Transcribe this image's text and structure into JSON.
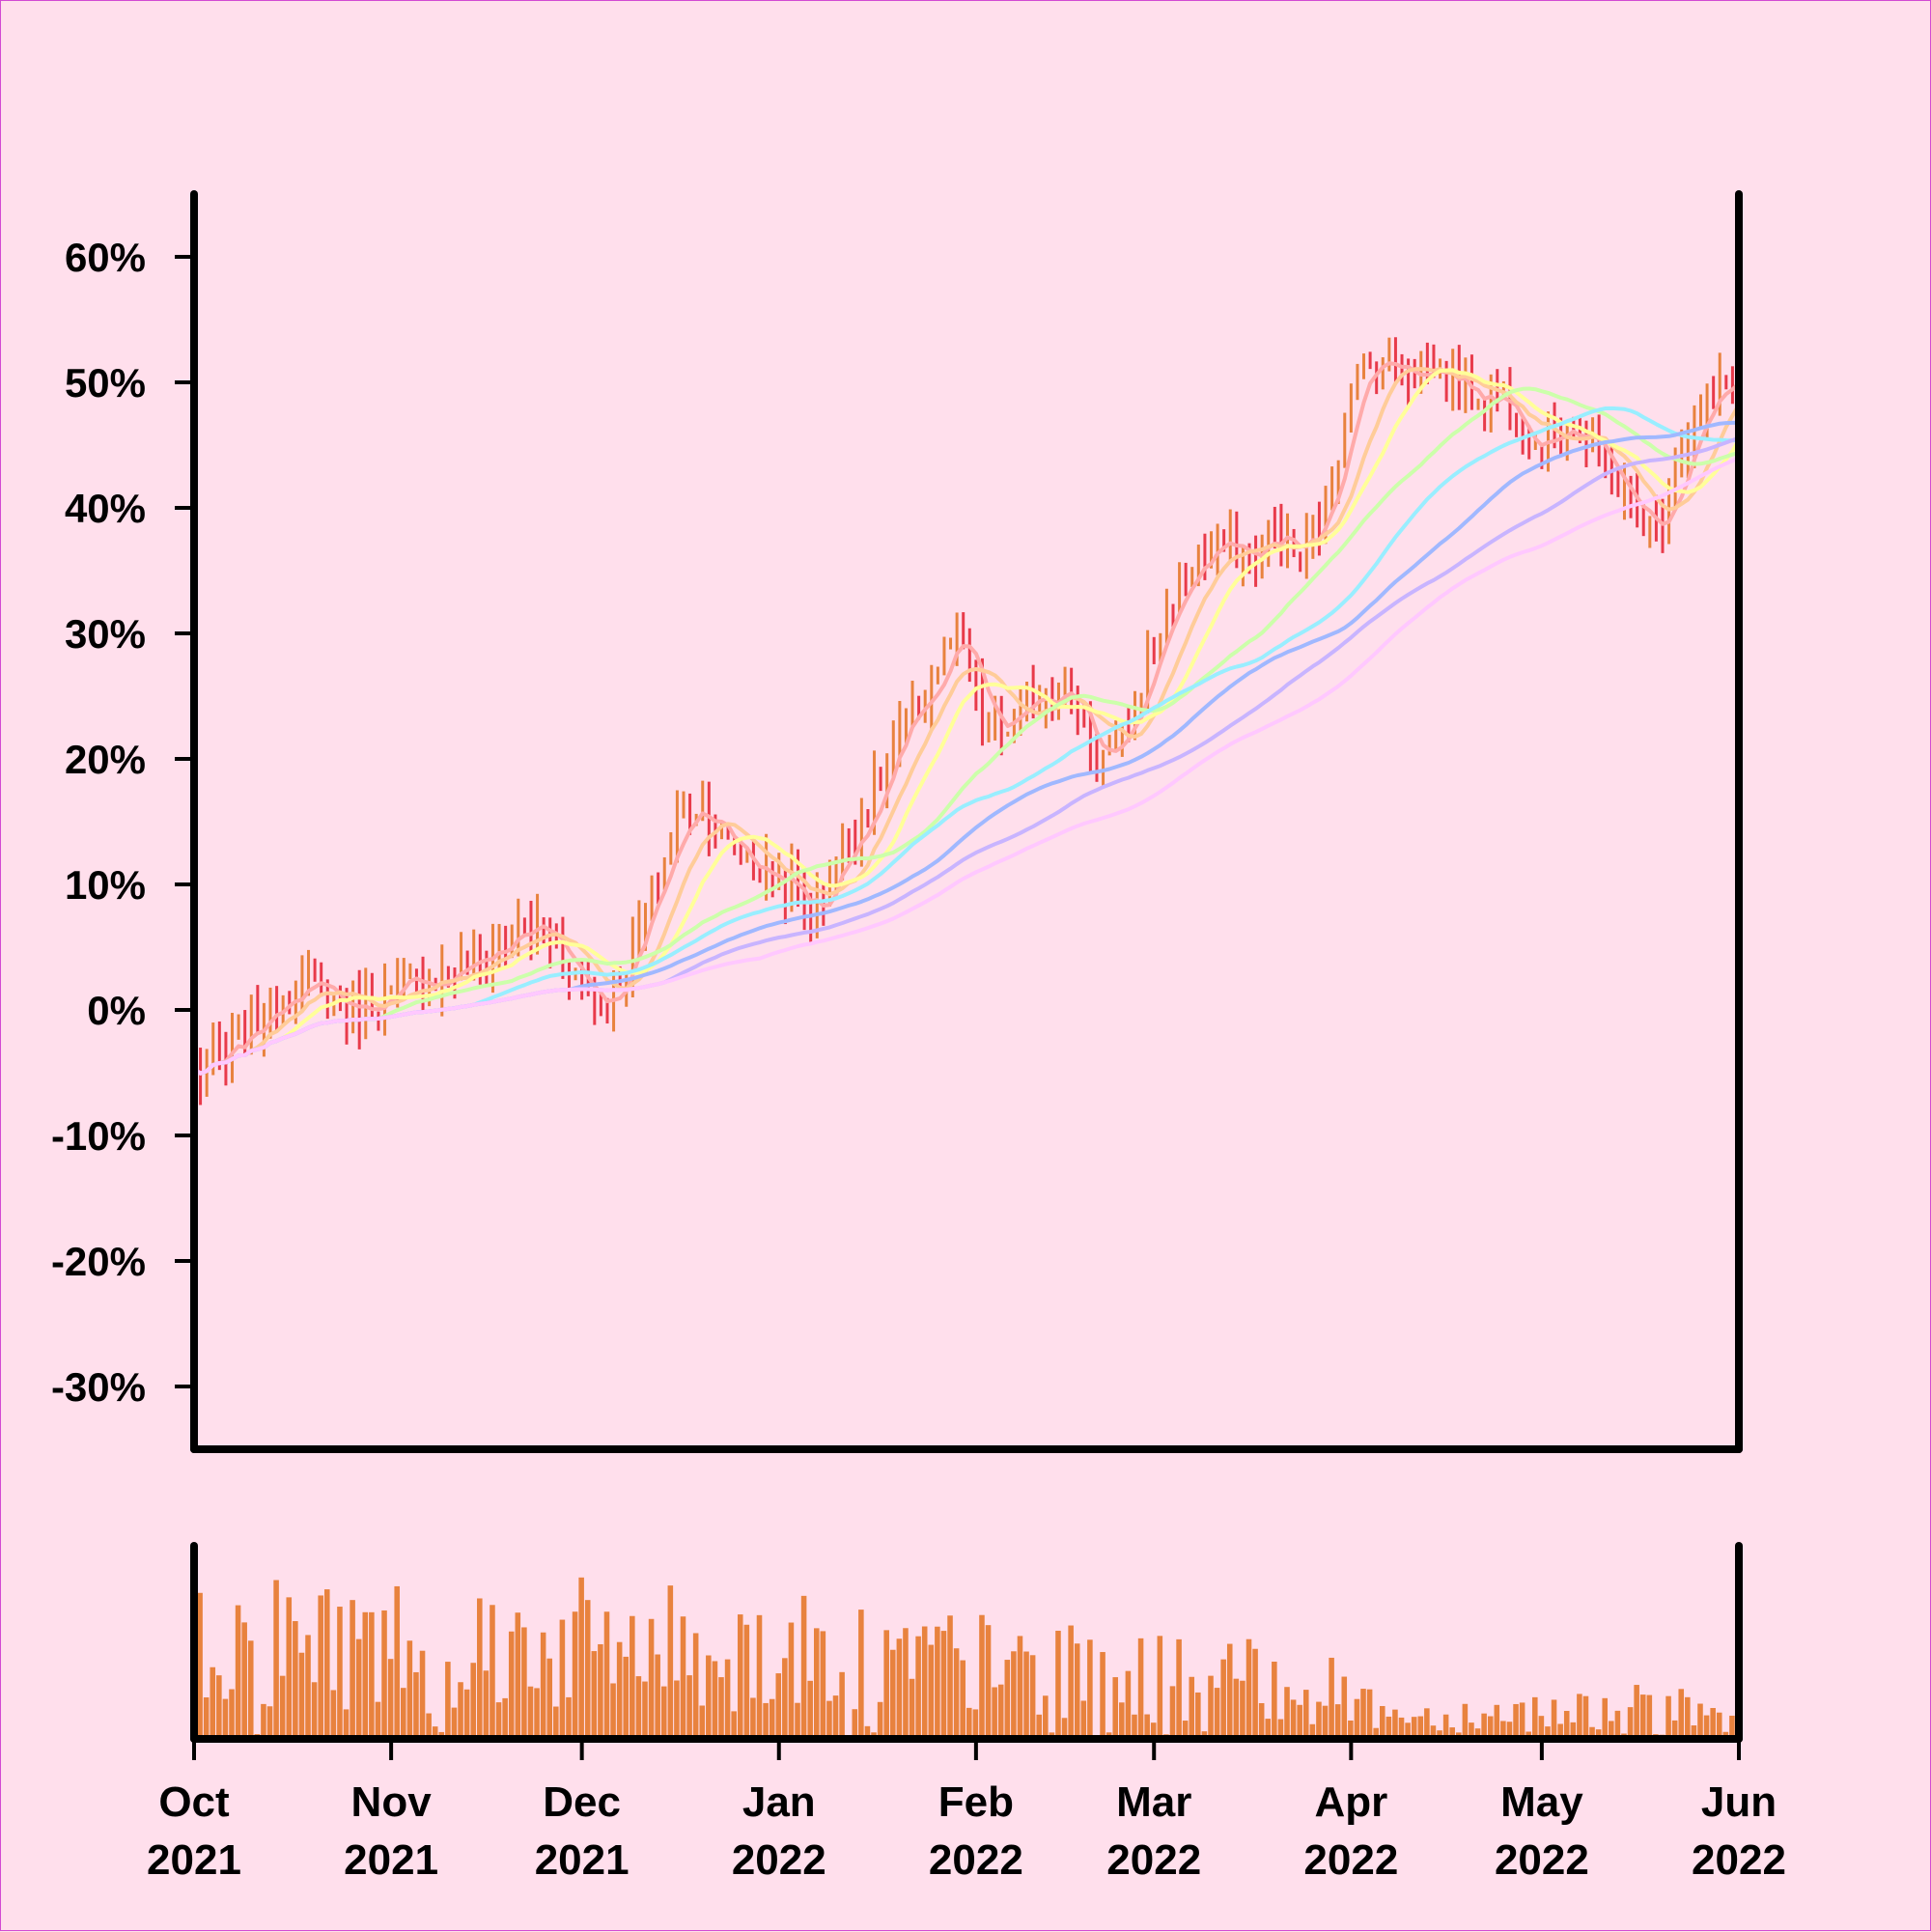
{
  "chart_data": {
    "type": "ohlc",
    "price_panel": {
      "yticks": [
        {
          "value": 60,
          "label": "60%"
        },
        {
          "value": 50,
          "label": "50%"
        },
        {
          "value": 40,
          "label": "40%"
        },
        {
          "value": 30,
          "label": "30%"
        },
        {
          "value": 20,
          "label": "20%"
        },
        {
          "value": 10,
          "label": "10%"
        },
        {
          "value": 0,
          "label": "0%"
        },
        {
          "value": -10,
          "label": "-10%"
        },
        {
          "value": -20,
          "label": "-20%"
        },
        {
          "value": -30,
          "label": "-30%"
        }
      ],
      "ylim": [
        -35,
        65
      ],
      "up_color": "#e8823e",
      "down_color": "#e83a4a",
      "anchors": [
        [
          "2021-10-01",
          -5
        ],
        [
          "2021-10-06",
          -4
        ],
        [
          "2021-10-11",
          -1
        ],
        [
          "2021-10-16",
          2
        ],
        [
          "2021-10-21",
          1.5
        ],
        [
          "2021-10-26",
          0
        ],
        [
          "2021-10-31",
          1
        ],
        [
          "2021-11-05",
          2
        ],
        [
          "2021-11-10",
          3
        ],
        [
          "2021-11-15",
          4
        ],
        [
          "2021-11-20",
          6
        ],
        [
          "2021-11-25",
          6.5
        ],
        [
          "2021-11-30",
          3
        ],
        [
          "2021-12-04",
          0
        ],
        [
          "2021-12-08",
          4
        ],
        [
          "2021-12-12",
          9
        ],
        [
          "2021-12-16",
          15
        ],
        [
          "2021-12-20",
          16.5
        ],
        [
          "2021-12-24",
          13
        ],
        [
          "2021-12-29",
          11
        ],
        [
          "2022-01-03",
          10
        ],
        [
          "2022-01-06",
          7
        ],
        [
          "2022-01-10",
          12
        ],
        [
          "2022-01-15",
          16
        ],
        [
          "2022-01-20",
          22
        ],
        [
          "2022-01-25",
          26
        ],
        [
          "2022-01-29",
          30
        ],
        [
          "2022-02-02",
          23
        ],
        [
          "2022-02-05",
          22
        ],
        [
          "2022-02-10",
          25
        ],
        [
          "2022-02-15",
          26
        ],
        [
          "2022-02-20",
          20
        ],
        [
          "2022-02-24",
          21
        ],
        [
          "2022-02-28",
          28
        ],
        [
          "2022-03-04",
          33
        ],
        [
          "2022-03-08",
          36
        ],
        [
          "2022-03-12",
          37
        ],
        [
          "2022-03-16",
          36
        ],
        [
          "2022-03-20",
          38
        ],
        [
          "2022-03-24",
          36
        ],
        [
          "2022-03-28",
          40
        ],
        [
          "2022-04-01",
          50
        ],
        [
          "2022-04-06",
          52
        ],
        [
          "2022-04-10",
          51
        ],
        [
          "2022-04-15",
          51
        ],
        [
          "2022-04-20",
          49
        ],
        [
          "2022-04-25",
          49
        ],
        [
          "2022-04-30",
          45
        ],
        [
          "2022-05-05",
          47
        ],
        [
          "2022-05-10",
          44
        ],
        [
          "2022-05-15",
          40
        ],
        [
          "2022-05-19",
          38
        ],
        [
          "2022-05-23",
          45
        ],
        [
          "2022-05-27",
          48
        ],
        [
          "2022-06-01",
          51
        ]
      ],
      "moving_averages": [
        {
          "window": 5,
          "color": "#ffaaaa"
        },
        {
          "window": 10,
          "color": "#ffcc99"
        },
        {
          "window": 15,
          "color": "#ffff99"
        },
        {
          "window": 30,
          "color": "#ccffaa"
        },
        {
          "window": 45,
          "color": "#99eeff"
        },
        {
          "window": 60,
          "color": "#a0b8ff"
        },
        {
          "window": 75,
          "color": "#c8b4ff"
        },
        {
          "window": 90,
          "color": "#ffc8ff"
        }
      ]
    },
    "volume_panel": {
      "bar_color": "#e8823e",
      "relative_height_trend": [
        [
          "2021-10-01",
          0.55
        ],
        [
          "2021-12-15",
          0.5
        ],
        [
          "2022-01-15",
          0.45
        ],
        [
          "2022-02-20",
          0.35
        ],
        [
          "2022-03-25",
          0.3
        ],
        [
          "2022-04-10",
          0.12
        ],
        [
          "2022-05-20",
          0.18
        ],
        [
          "2022-06-01",
          0.1
        ]
      ]
    },
    "xticks": [
      {
        "date": "2021-10-01",
        "month": "Oct",
        "year": "2021"
      },
      {
        "date": "2021-11-01",
        "month": "Nov",
        "year": "2021"
      },
      {
        "date": "2021-12-01",
        "month": "Dec",
        "year": "2021"
      },
      {
        "date": "2022-01-01",
        "month": "Jan",
        "year": "2022"
      },
      {
        "date": "2022-02-01",
        "month": "Feb",
        "year": "2022"
      },
      {
        "date": "2022-03-01",
        "month": "Mar",
        "year": "2022"
      },
      {
        "date": "2022-04-01",
        "month": "Apr",
        "year": "2022"
      },
      {
        "date": "2022-05-01",
        "month": "May",
        "year": "2022"
      },
      {
        "date": "2022-06-01",
        "month": "Jun",
        "year": "2022"
      }
    ],
    "xlim": [
      "2021-10-01",
      "2022-06-01"
    ],
    "grid": false
  }
}
